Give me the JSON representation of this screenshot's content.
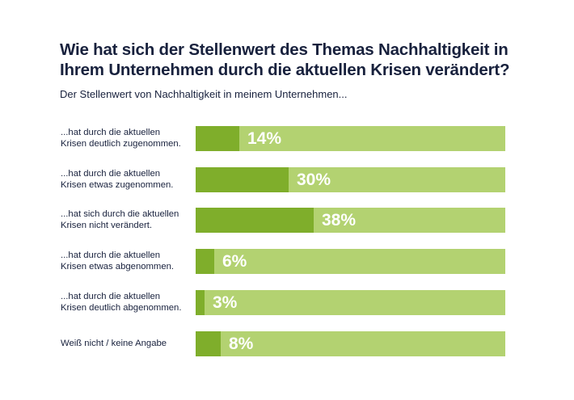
{
  "title": "Wie hat sich der Stellenwert des Themas Nachhaltigkeit in Ihrem Unternehmen durch die aktuellen Krisen verändert?",
  "subtitle": "Der Stellenwert von Nachhaltigkeit in meinem Unternehmen...",
  "colors": {
    "fill": "#7fae2b",
    "track": "#b3d271",
    "text": "#18213d",
    "value_text": "#ffffff"
  },
  "chart_data": {
    "type": "bar",
    "orientation": "horizontal",
    "title": "Wie hat sich der Stellenwert des Themas Nachhaltigkeit in Ihrem Unternehmen durch die aktuellen Krisen verändert?",
    "subtitle": "Der Stellenwert von Nachhaltigkeit in meinem Unternehmen...",
    "xlabel": "",
    "ylabel": "",
    "xlim": [
      0,
      100
    ],
    "unit": "%",
    "categories": [
      [
        "...hat durch die aktuellen",
        "Krisen deutlich zugenommen."
      ],
      [
        "...hat durch die aktuellen",
        "Krisen etwas zugenommen."
      ],
      [
        "...hat sich durch die aktuellen",
        "Krisen nicht verändert."
      ],
      [
        "...hat durch die aktuellen",
        "Krisen etwas abgenommen."
      ],
      [
        "...hat durch die aktuellen",
        "Krisen deutlich abgenommen."
      ],
      [
        "Weiß nicht / keine Angabe"
      ]
    ],
    "values": [
      14,
      30,
      38,
      6,
      3,
      8
    ],
    "value_labels": [
      "14%",
      "30%",
      "38%",
      "6%",
      "3%",
      "8%"
    ],
    "grid": false,
    "legend": "none"
  }
}
